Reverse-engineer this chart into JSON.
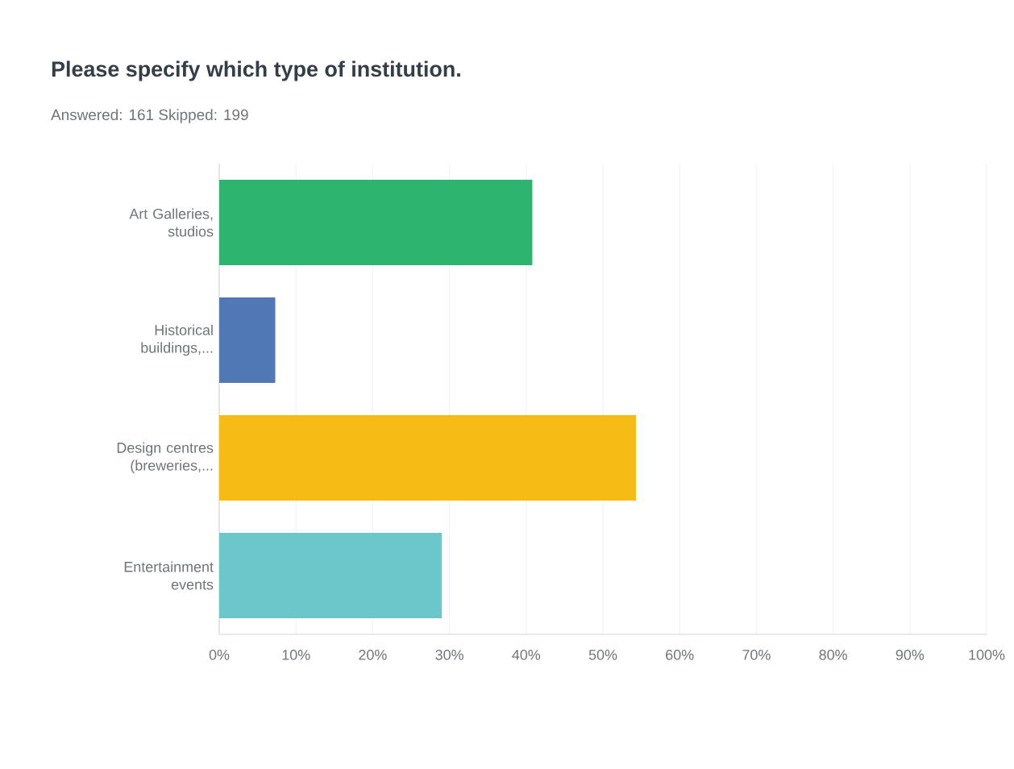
{
  "chart_data": {
    "type": "bar",
    "orientation": "horizontal",
    "title": "Please specify which type of institution.",
    "subtitle": "Answered: 161    Skipped: 199",
    "categories": [
      "Art Galleries, studios",
      "Historical buildings,...",
      "Design centres (breweries,...",
      "Entertainment events"
    ],
    "values": [
      40.8,
      7.3,
      54.3,
      29.0
    ],
    "colors": [
      "#2db46e",
      "#4f78b4",
      "#f7bb16",
      "#6cc7ca"
    ],
    "xlim": [
      0,
      100
    ],
    "xticks": [
      {
        "value": 0,
        "label": "0%"
      },
      {
        "value": 10,
        "label": "10%"
      },
      {
        "value": 20,
        "label": "20%"
      },
      {
        "value": 30,
        "label": "30%"
      },
      {
        "value": 40,
        "label": "40%"
      },
      {
        "value": 50,
        "label": "50%"
      },
      {
        "value": 60,
        "label": "60%"
      },
      {
        "value": 70,
        "label": "70%"
      },
      {
        "value": 80,
        "label": "80%"
      },
      {
        "value": 90,
        "label": "90%"
      },
      {
        "value": 100,
        "label": "100%"
      }
    ],
    "grid": "x"
  }
}
